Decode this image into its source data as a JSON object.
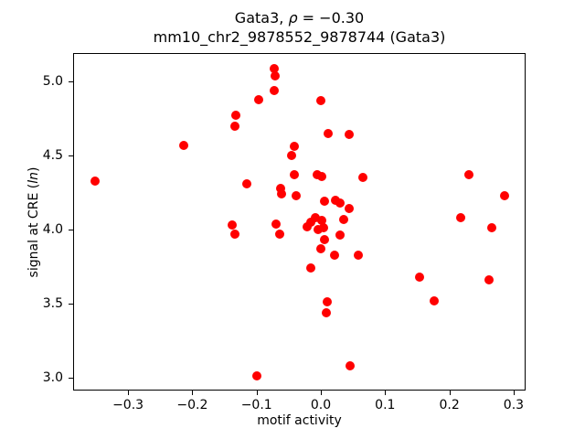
{
  "figure": {
    "title_prefix": "Gata3, ",
    "title_rho": "ρ",
    "title_rest": " = −0.30",
    "subtitle": "mm10_chr2_9878552_9878744 (Gata3)",
    "xlabel": "motif activity",
    "ylabel_prefix": "signal at CRE (",
    "ylabel_italic": "ln",
    "ylabel_suffix": ")"
  },
  "chart_data": {
    "type": "scatter",
    "title": "Gata3, ρ = −0.30",
    "subtitle": "mm10_chr2_9878552_9878744 (Gata3)",
    "xlabel": "motif activity",
    "ylabel": "signal at CRE (ln)",
    "marker_color": "#ff0000",
    "grid": false,
    "legend": false,
    "xlim": [
      -0.384,
      0.32
    ],
    "ylim": [
      2.906,
      5.187
    ],
    "xticks": [
      -0.3,
      -0.2,
      -0.1,
      0.0,
      0.1,
      0.2,
      0.3
    ],
    "yticks": [
      3.0,
      3.5,
      4.0,
      4.5,
      5.0
    ],
    "points": [
      [
        -0.352,
        4.33
      ],
      [
        -0.213,
        4.57
      ],
      [
        -0.138,
        4.03
      ],
      [
        -0.134,
        3.97
      ],
      [
        -0.133,
        4.7
      ],
      [
        -0.132,
        4.77
      ],
      [
        -0.115,
        4.31
      ],
      [
        -0.1,
        3.01
      ],
      [
        -0.097,
        4.88
      ],
      [
        -0.073,
        5.09
      ],
      [
        -0.073,
        4.94
      ],
      [
        -0.071,
        5.04
      ],
      [
        -0.07,
        4.04
      ],
      [
        -0.064,
        3.97
      ],
      [
        -0.063,
        4.28
      ],
      [
        -0.061,
        4.24
      ],
      [
        -0.046,
        4.5
      ],
      [
        -0.041,
        4.56
      ],
      [
        -0.041,
        4.37
      ],
      [
        -0.039,
        4.23
      ],
      [
        -0.021,
        4.02
      ],
      [
        -0.016,
        4.05
      ],
      [
        -0.015,
        3.74
      ],
      [
        -0.008,
        4.08
      ],
      [
        -0.005,
        4.37
      ],
      [
        -0.004,
        4.0
      ],
      [
        0.0,
        4.87
      ],
      [
        0.0,
        3.87
      ],
      [
        0.001,
        4.06
      ],
      [
        0.002,
        4.36
      ],
      [
        0.004,
        4.01
      ],
      [
        0.005,
        3.93
      ],
      [
        0.006,
        4.19
      ],
      [
        0.009,
        3.44
      ],
      [
        0.01,
        3.51
      ],
      [
        0.012,
        4.65
      ],
      [
        0.022,
        3.83
      ],
      [
        0.023,
        4.2
      ],
      [
        0.03,
        4.18
      ],
      [
        0.03,
        3.96
      ],
      [
        0.035,
        4.07
      ],
      [
        0.044,
        4.64
      ],
      [
        0.044,
        4.14
      ],
      [
        0.046,
        3.08
      ],
      [
        0.058,
        3.83
      ],
      [
        0.065,
        4.35
      ],
      [
        0.153,
        3.68
      ],
      [
        0.177,
        3.52
      ],
      [
        0.217,
        4.08
      ],
      [
        0.23,
        4.37
      ],
      [
        0.261,
        3.66
      ],
      [
        0.266,
        4.01
      ],
      [
        0.286,
        4.23
      ]
    ]
  }
}
